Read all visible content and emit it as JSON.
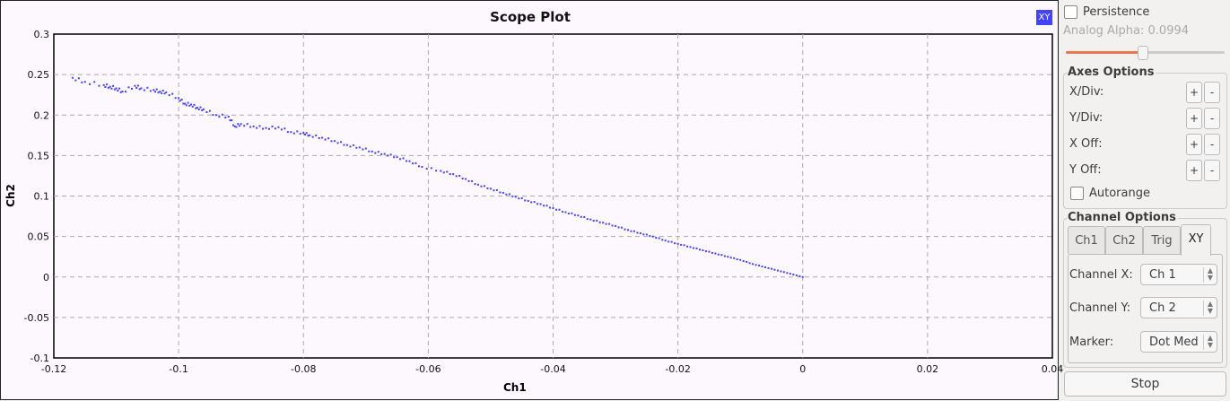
{
  "chart_data": {
    "type": "scatter",
    "title": "Scope Plot",
    "xlabel": "Ch1",
    "ylabel": "Ch2",
    "xlim": [
      -0.12,
      0.04
    ],
    "ylim": [
      -0.1,
      0.3
    ],
    "xticks": [
      "-0.12",
      "-0.1",
      "-0.08",
      "-0.06",
      "-0.04",
      "-0.02",
      "0",
      "0.02",
      "0.04"
    ],
    "yticks": [
      "-0.1",
      "-0.05",
      "0",
      "0.05",
      "0.1",
      "0.15",
      "0.2",
      "0.25",
      "0.3"
    ],
    "grid": true,
    "marker_color": "#4444ff",
    "points": [
      [
        -0.117,
        0.246
      ],
      [
        -0.115,
        0.241
      ],
      [
        -0.112,
        0.237
      ],
      [
        -0.111,
        0.235
      ],
      [
        -0.11,
        0.233
      ],
      [
        -0.109,
        0.229
      ],
      [
        -0.107,
        0.236
      ],
      [
        -0.106,
        0.233
      ],
      [
        -0.104,
        0.231
      ],
      [
        -0.103,
        0.229
      ],
      [
        -0.102,
        0.228
      ],
      [
        -0.1,
        0.221
      ],
      [
        -0.099,
        0.214
      ],
      [
        -0.098,
        0.213
      ],
      [
        -0.097,
        0.209
      ],
      [
        -0.096,
        0.207
      ],
      [
        -0.094,
        0.2
      ],
      [
        -0.092,
        0.198
      ],
      [
        -0.091,
        0.186
      ],
      [
        -0.09,
        0.189
      ],
      [
        -0.088,
        0.186
      ],
      [
        -0.086,
        0.184
      ],
      [
        -0.084,
        0.185
      ],
      [
        -0.082,
        0.179
      ],
      [
        -0.08,
        0.178
      ],
      [
        -0.079,
        0.175
      ],
      [
        -0.077,
        0.172
      ],
      [
        -0.075,
        0.168
      ],
      [
        -0.073,
        0.163
      ],
      [
        -0.071,
        0.16
      ],
      [
        -0.069,
        0.155
      ],
      [
        -0.067,
        0.152
      ],
      [
        -0.065,
        0.148
      ],
      [
        -0.063,
        0.143
      ],
      [
        -0.061,
        0.136
      ],
      [
        -0.058,
        0.131
      ],
      [
        -0.056,
        0.127
      ],
      [
        -0.054,
        0.121
      ],
      [
        -0.052,
        0.114
      ],
      [
        -0.05,
        0.109
      ],
      [
        -0.048,
        0.104
      ],
      [
        -0.046,
        0.099
      ],
      [
        -0.044,
        0.094
      ],
      [
        -0.042,
        0.09
      ],
      [
        -0.04,
        0.085
      ],
      [
        -0.038,
        0.08
      ],
      [
        -0.036,
        0.076
      ],
      [
        -0.034,
        0.071
      ],
      [
        -0.032,
        0.067
      ],
      [
        -0.03,
        0.063
      ],
      [
        -0.028,
        0.058
      ],
      [
        -0.026,
        0.054
      ],
      [
        -0.024,
        0.05
      ],
      [
        -0.022,
        0.045
      ],
      [
        -0.02,
        0.041
      ],
      [
        -0.018,
        0.037
      ],
      [
        -0.016,
        0.033
      ],
      [
        -0.014,
        0.029
      ],
      [
        -0.012,
        0.025
      ],
      [
        -0.01,
        0.021
      ],
      [
        -0.008,
        0.016
      ],
      [
        -0.006,
        0.012
      ],
      [
        -0.004,
        0.008
      ],
      [
        -0.002,
        0.004
      ],
      [
        0,
        0
      ]
    ]
  },
  "plot": {
    "badge": "XY"
  },
  "side": {
    "persistence": "Persistence",
    "alpha_label": "Analog Alpha: 0.0994",
    "alpha_value": 0.0994,
    "alpha_slider_fraction": 0.48,
    "axes_title": "Axes Options",
    "axes_rows": [
      "X/Div:",
      "Y/Div:",
      "X Off:",
      "Y Off:"
    ],
    "plus": "+",
    "minus": "-",
    "autorange": "Autorange",
    "channel_title": "Channel Options",
    "tabs": [
      "Ch1",
      "Ch2",
      "Trig",
      "XY"
    ],
    "active_tab": "XY",
    "channel_x_label": "Channel X:",
    "channel_x_value": "Ch 1",
    "channel_y_label": "Channel Y:",
    "channel_y_value": "Ch 2",
    "marker_label": "Marker:",
    "marker_value": "Dot Med",
    "stop": "Stop",
    "accent": "#e9784a"
  }
}
